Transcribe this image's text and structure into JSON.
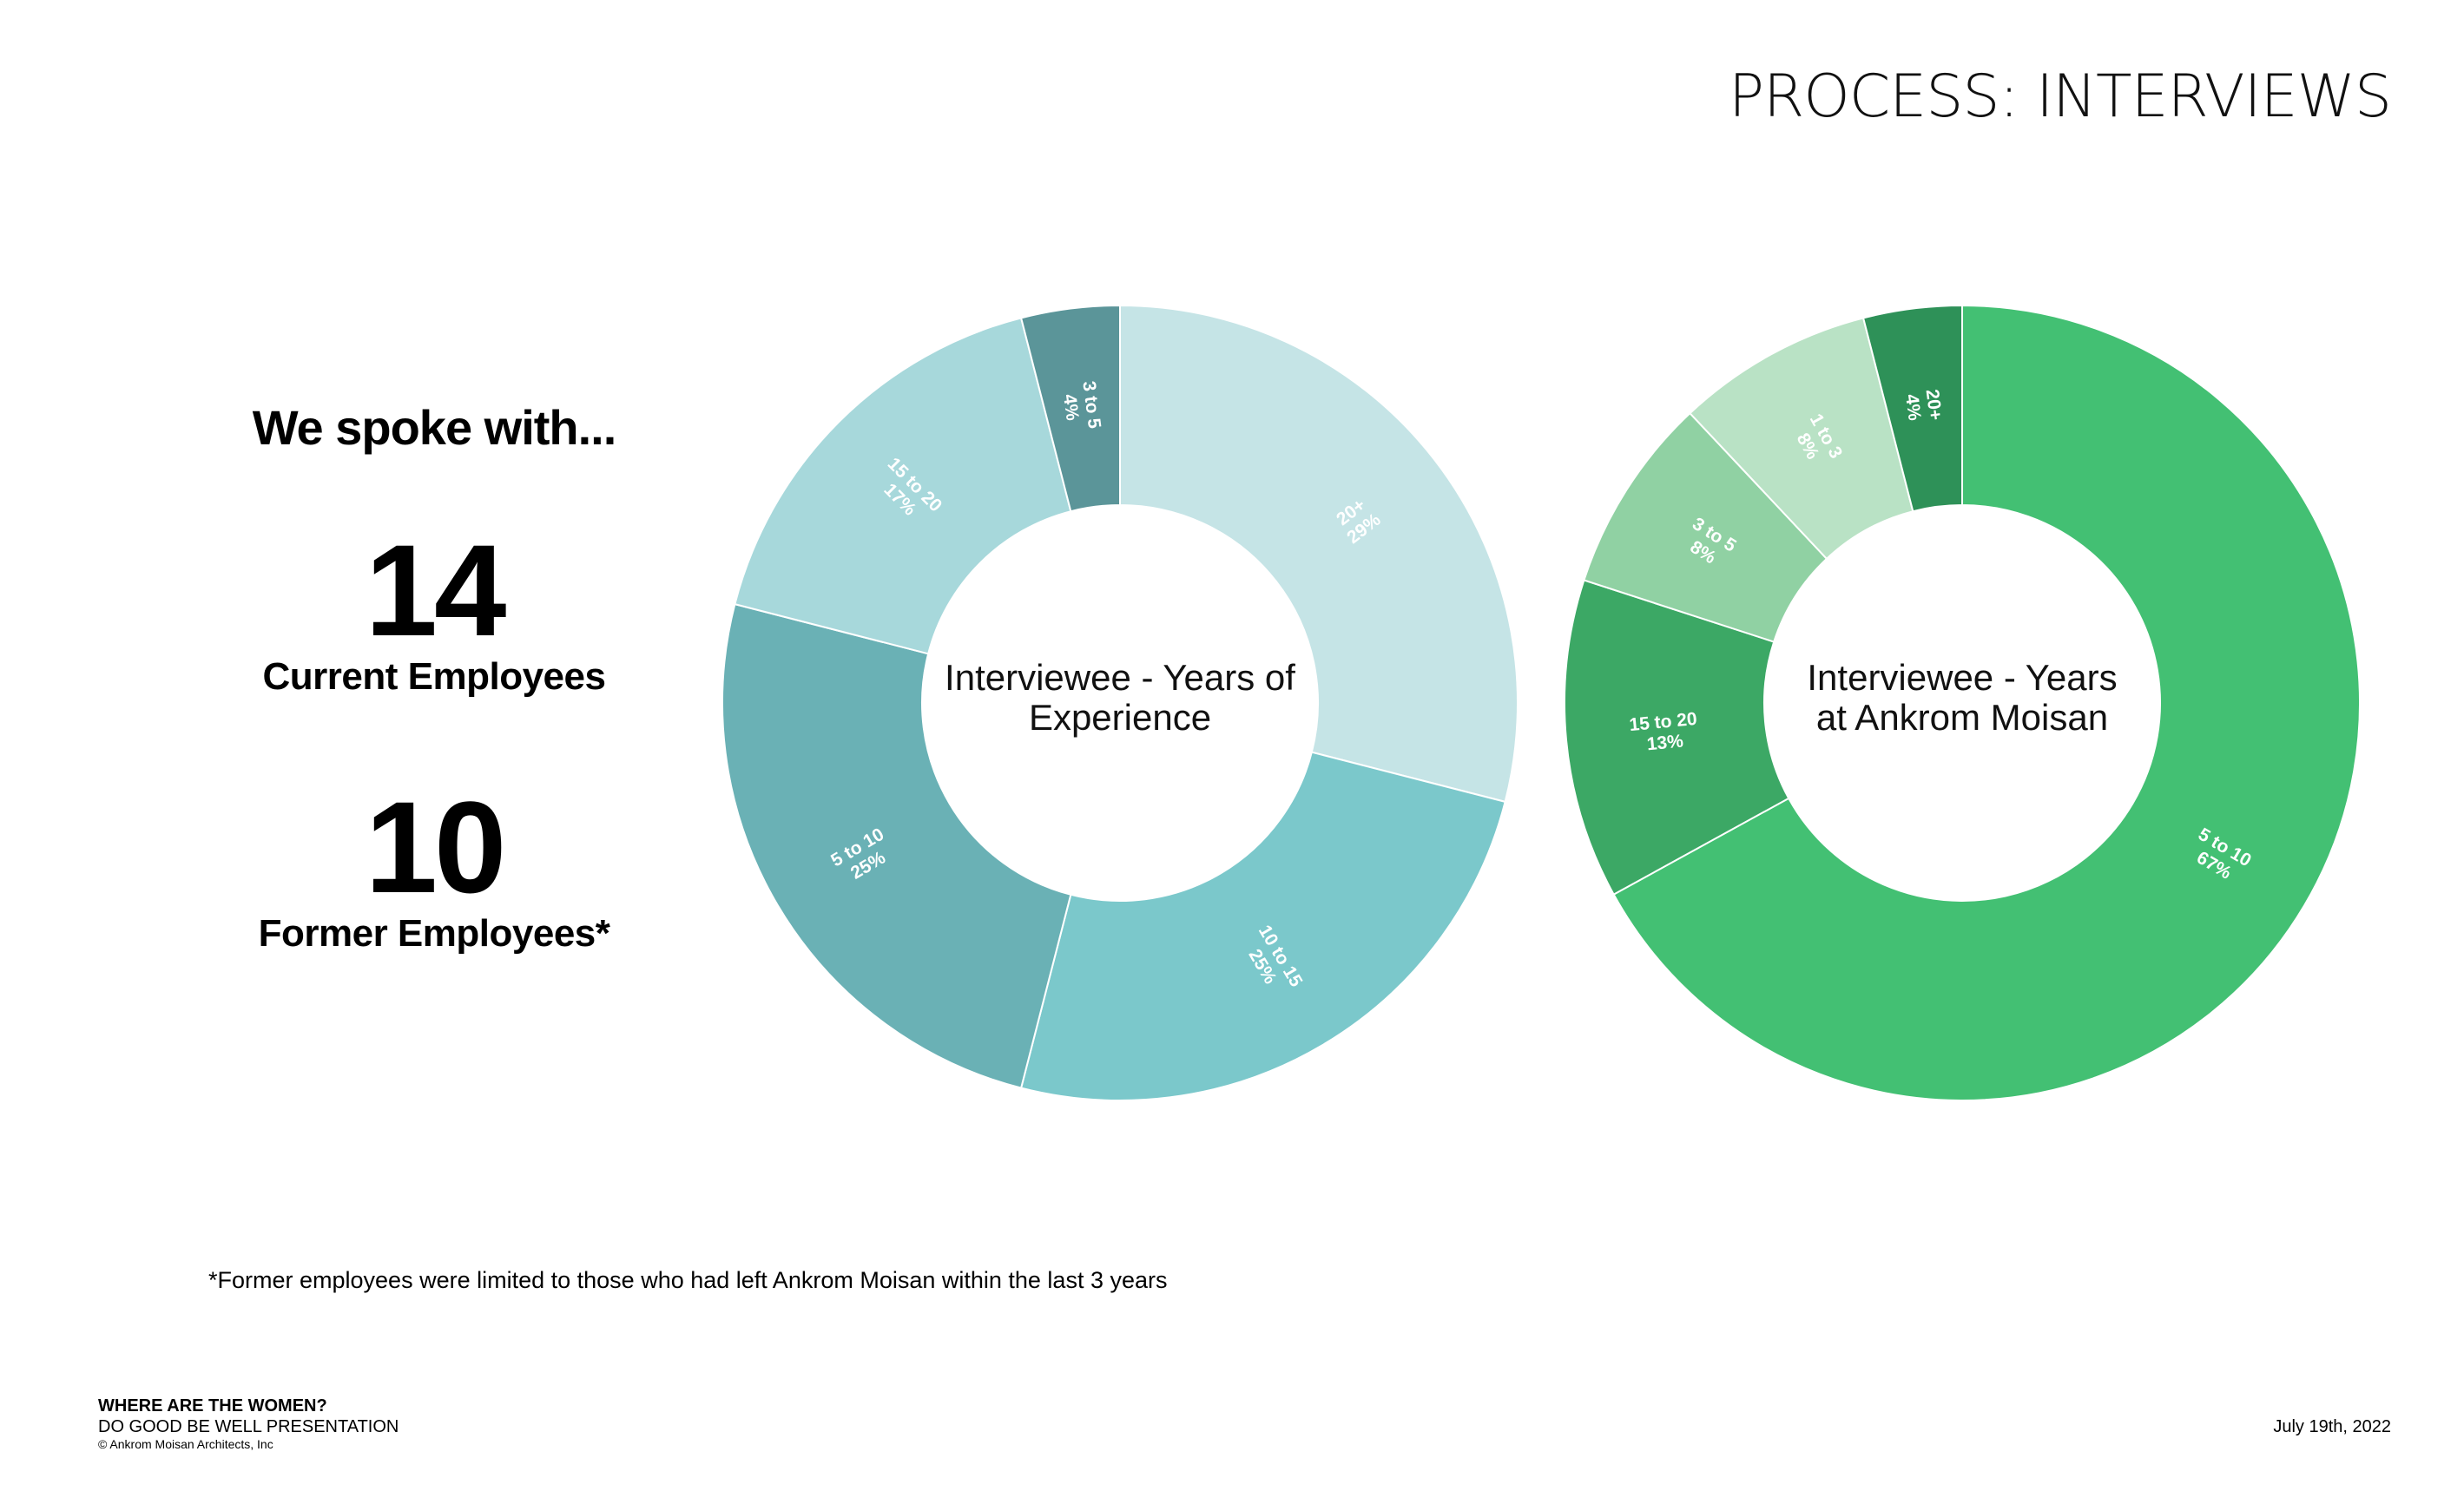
{
  "header": {
    "title": "PROCESS: INTERVIEWS"
  },
  "stats": {
    "heading": "We spoke with...",
    "current": {
      "number": "14",
      "label": "Current Employees"
    },
    "former": {
      "number": "10",
      "label": "Former Employees*"
    }
  },
  "footnote": "*Former employees were limited to those who had left Ankrom Moisan within the last 3 years",
  "footer": {
    "title": "WHERE ARE THE WOMEN?",
    "subtitle": "DO GOOD BE WELL PRESENTATION",
    "copyright": "© Ankrom Moisan Architects, Inc",
    "date": "July 19th, 2022"
  },
  "chart_data": [
    {
      "type": "pie",
      "donut": true,
      "title": "Interviewee - Years of Experience",
      "center_lines": [
        "Interviewee - Years of",
        "Experience"
      ],
      "slices": [
        {
          "name": "20+",
          "value": 29,
          "label": "29%",
          "color": "#c5e4e6"
        },
        {
          "name": "10 to 15",
          "value": 25,
          "label": "25%",
          "color": "#7bc8cb"
        },
        {
          "name": "5 to 10",
          "value": 25,
          "label": "25%",
          "color": "#6ab1b5"
        },
        {
          "name": "15 to 20",
          "value": 17,
          "label": "17%",
          "color": "#a7d8db"
        },
        {
          "name": "3 to 5",
          "value": 4,
          "label": "4%",
          "color": "#5b9599"
        }
      ]
    },
    {
      "type": "pie",
      "donut": true,
      "title": "Interviewee - Years at Ankrom Moisan",
      "center_lines": [
        "Interviewee - Years",
        "at Ankrom Moisan"
      ],
      "slices": [
        {
          "name": "5 to 10",
          "value": 67,
          "label": "67%",
          "color": "#43c073"
        },
        {
          "name": "15 to 20",
          "value": 13,
          "label": "13%",
          "color": "#3ca865"
        },
        {
          "name": "3 to 5",
          "value": 8,
          "label": "8%",
          "color": "#90d1a3"
        },
        {
          "name": "1 to 3",
          "value": 8,
          "label": "8%",
          "color": "#b9e2c5"
        },
        {
          "name": "20+",
          "value": 4,
          "label": "4%",
          "color": "#2e9158"
        }
      ]
    }
  ]
}
